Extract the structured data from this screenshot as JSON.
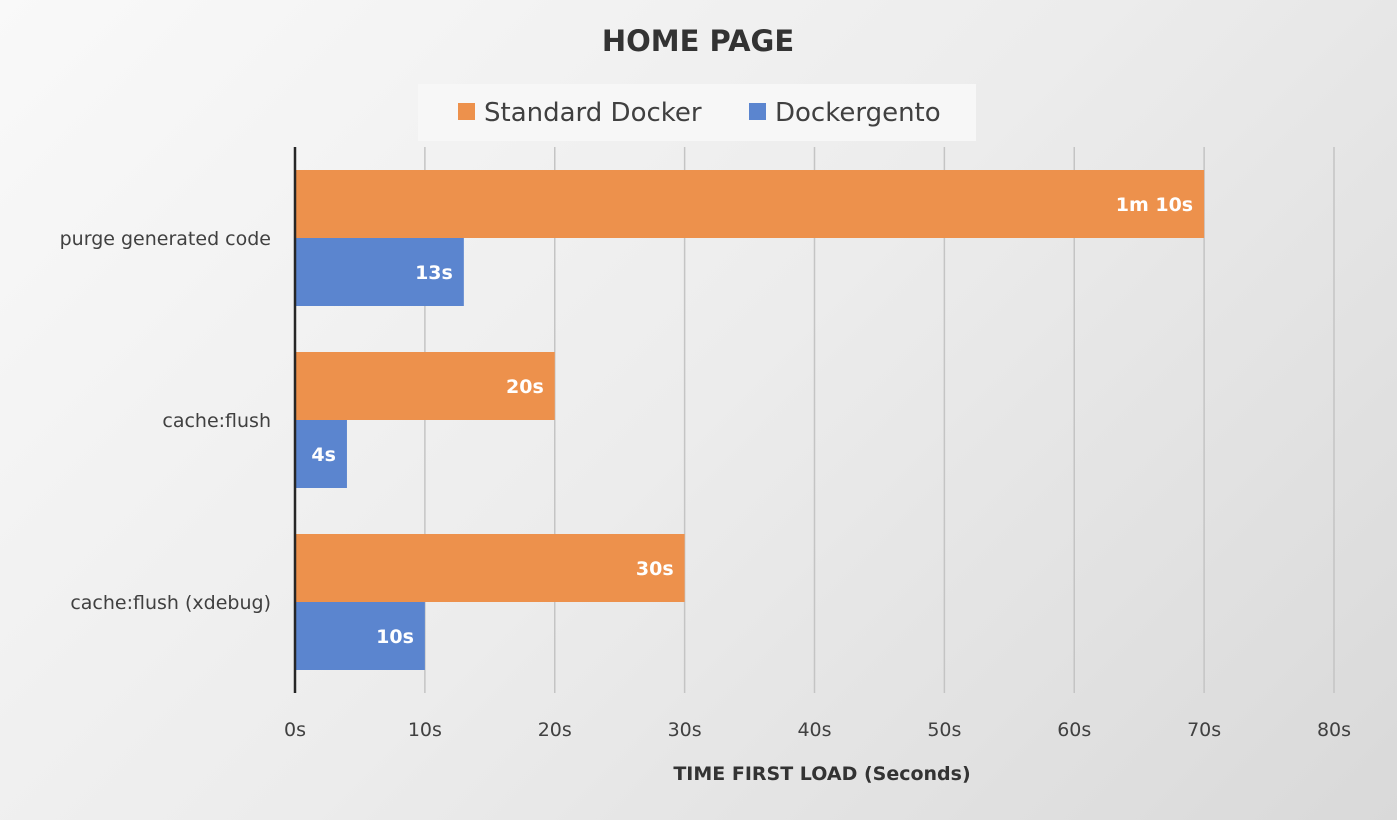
{
  "chart_data": {
    "type": "bar",
    "orientation": "horizontal",
    "title": "HOME PAGE",
    "xlabel": "TIME FIRST LOAD (Seconds)",
    "ylabel": "",
    "categories": [
      "purge generated code",
      "cache:flush",
      "cache:flush (xdebug)"
    ],
    "series": [
      {
        "name": "Standard Docker",
        "color": "#ed914c",
        "values": [
          70,
          20,
          30
        ],
        "labels": [
          "1m 10s",
          "20s",
          "30s"
        ]
      },
      {
        "name": "Dockergento",
        "color": "#5b85cf",
        "values": [
          13,
          4,
          10
        ],
        "labels": [
          "13s",
          "4s",
          "10s"
        ]
      }
    ],
    "xlim": [
      0,
      80
    ],
    "xticks": [
      {
        "value": 0,
        "label": "0s"
      },
      {
        "value": 10,
        "label": "10s"
      },
      {
        "value": 20,
        "label": "20s"
      },
      {
        "value": 30,
        "label": "30s"
      },
      {
        "value": 40,
        "label": "40s"
      },
      {
        "value": 50,
        "label": "50s"
      },
      {
        "value": 60,
        "label": "60s"
      },
      {
        "value": 70,
        "label": "70s"
      },
      {
        "value": 80,
        "label": "80s"
      }
    ],
    "grid": true,
    "legend_position": "top"
  }
}
